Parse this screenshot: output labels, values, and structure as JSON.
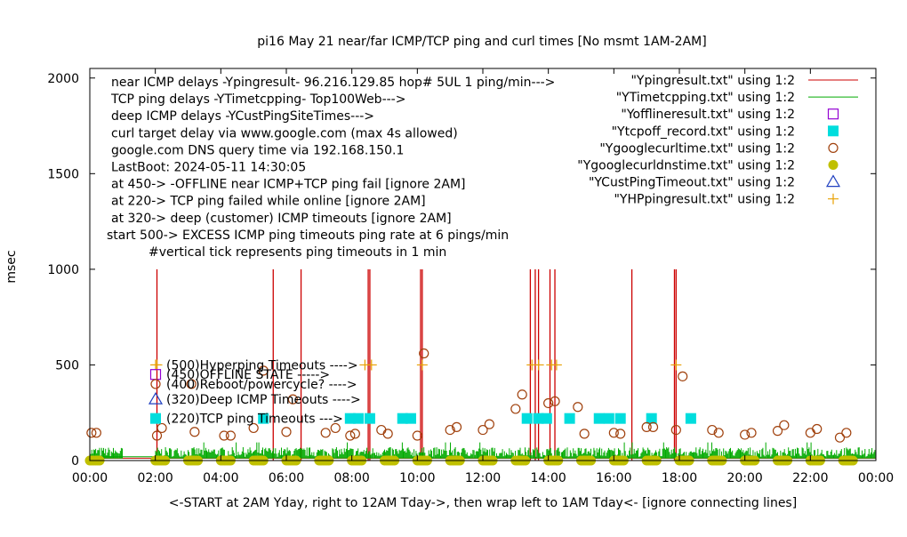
{
  "chart_data": {
    "type": "scatter",
    "title": "pi16 May 21  near/far ICMP/TCP ping and curl times [No msmt 1AM-2AM]",
    "xlabel": "<-START at 2AM Yday, right to 12AM Tday->, then wrap left to 1AM Tday<- [ignore connecting lines]",
    "ylabel": "msec",
    "xlim": [
      0,
      24
    ],
    "ylim": [
      0,
      2050
    ],
    "grid": false,
    "x_ticks": [
      {
        "v": 0,
        "label": "00:00"
      },
      {
        "v": 2,
        "label": "02:00"
      },
      {
        "v": 4,
        "label": "04:00"
      },
      {
        "v": 6,
        "label": "06:00"
      },
      {
        "v": 8,
        "label": "08:00"
      },
      {
        "v": 10,
        "label": "10:00"
      },
      {
        "v": 12,
        "label": "12:00"
      },
      {
        "v": 14,
        "label": "14:00"
      },
      {
        "v": 16,
        "label": "16:00"
      },
      {
        "v": 18,
        "label": "18:00"
      },
      {
        "v": 20,
        "label": "20:00"
      },
      {
        "v": 22,
        "label": "22:00"
      },
      {
        "v": 24,
        "label": "00:00"
      }
    ],
    "y_ticks": [
      {
        "v": 0,
        "label": "0"
      },
      {
        "v": 500,
        "label": "500"
      },
      {
        "v": 1000,
        "label": "1000"
      },
      {
        "v": 1500,
        "label": "1500"
      },
      {
        "v": 2000,
        "label": "2000"
      }
    ],
    "info_lines": [
      "near ICMP delays -Ypingresult- 96.216.129.85 hop# 5UL 1 ping/min--->",
      "TCP ping delays -YTimetcpping- Top100Web--->",
      "deep ICMP delays -YCustPingSiteTimes--->",
      "curl target delay via www.google.com (max 4s allowed)",
      "google.com DNS query time via 192.168.150.1",
      "LastBoot: 2024-05-11 14:30:05",
      "at 450-> -OFFLINE near ICMP+TCP ping fail [ignore 2AM]",
      "at 220-> TCP ping failed while online [ignore 2AM]",
      "at 320-> deep (customer) ICMP timeouts [ignore 2AM]",
      "start 500-> EXCESS ICMP ping timeouts ping rate at 6 pings/min",
      "#vertical tick represents ping timeouts in 1 min"
    ],
    "legend_position": "top-right",
    "legend": [
      {
        "label": "\"Ypingresult.txt\" using 1:2",
        "symbol": "line",
        "color": "#cc0000"
      },
      {
        "label": "\"YTimetcpping.txt\" using 1:2",
        "symbol": "line",
        "color": "#00aa00"
      },
      {
        "label": "\"Yofflineresult.txt\" using 1:2",
        "symbol": "open-square",
        "color": "#9400d3"
      },
      {
        "label": "\"Ytcpoff_record.txt\" using 1:2",
        "symbol": "filled-square",
        "color": "#00dddd"
      },
      {
        "label": "\"Ygooglecurltime.txt\" using 1:2",
        "symbol": "open-circle",
        "color": "#a0410d"
      },
      {
        "label": "\"Ygooglecurldnstime.txt\" using 1:2",
        "symbol": "filled-circle",
        "color": "#c0c000"
      },
      {
        "label": "\"YCustPingTimeout.txt\" using 1:2",
        "symbol": "open-triangle",
        "color": "#2040c0"
      },
      {
        "label": "\"YHPpingresult.txt\" using 1:2",
        "symbol": "plus",
        "color": "#e8a000"
      }
    ],
    "inline_key": [
      {
        "label": "(500)Hyperping Timeouts ---->",
        "symbol": "plus",
        "color": "#e8a000",
        "y": 500
      },
      {
        "label": "(450)OFFLINE STATE ----->",
        "symbol": "open-square",
        "color": "#9400d3",
        "y": 450
      },
      {
        "label": "(400)Reboot/powercycle? ---->",
        "symbol": "open-circle",
        "color": "#a0410d",
        "y": 400
      },
      {
        "label": "(320)Deep ICMP Timeouts ---->",
        "symbol": "open-triangle",
        "color": "#2040c0",
        "y": 320
      },
      {
        "label": "(220)TCP ping Timeouts --->",
        "symbol": "filled-square",
        "color": "#00dddd",
        "y": 220
      }
    ],
    "series": [
      {
        "name": "\"Ypingresult.txt\" using 1:2",
        "style": "impulses",
        "color": "#cc0000",
        "baseline": 12,
        "spikes": [
          [
            2.05,
            1000
          ],
          [
            5.6,
            1000
          ],
          [
            6.45,
            1000
          ],
          [
            8.5,
            1000
          ],
          [
            8.55,
            1000
          ],
          [
            10.1,
            1000
          ],
          [
            10.15,
            1000
          ],
          [
            13.45,
            1000
          ],
          [
            13.6,
            1000
          ],
          [
            13.7,
            1000
          ],
          [
            14.05,
            1000
          ],
          [
            14.2,
            1000
          ],
          [
            16.55,
            1000
          ],
          [
            17.85,
            1000
          ],
          [
            17.9,
            1000
          ]
        ]
      },
      {
        "name": "\"YTimetcpping.txt\" using 1:2",
        "style": "noise-band",
        "color": "#00aa00",
        "baseline": 20,
        "typical_max": 70,
        "peak": 95
      },
      {
        "name": "\"Ytcpoff_record.txt\" using 1:2",
        "style": "filled-square",
        "color": "#00dddd",
        "points": [
          [
            5.3,
            220
          ],
          [
            7.95,
            220
          ],
          [
            8.2,
            220
          ],
          [
            8.55,
            220
          ],
          [
            9.55,
            220
          ],
          [
            9.8,
            220
          ],
          [
            13.35,
            220
          ],
          [
            13.7,
            220
          ],
          [
            13.95,
            220
          ],
          [
            14.65,
            220
          ],
          [
            15.55,
            220
          ],
          [
            15.85,
            220
          ],
          [
            16.2,
            220
          ],
          [
            17.15,
            220
          ],
          [
            18.35,
            220
          ]
        ]
      },
      {
        "name": "\"Ygooglecurltime.txt\" using 1:2",
        "style": "open-circle",
        "color": "#a0410d",
        "points": [
          [
            0.05,
            145
          ],
          [
            0.2,
            145
          ],
          [
            2.05,
            130
          ],
          [
            2.2,
            170
          ],
          [
            3.1,
            400
          ],
          [
            3.2,
            150
          ],
          [
            4.1,
            130
          ],
          [
            4.3,
            130
          ],
          [
            5.0,
            170
          ],
          [
            5.3,
            470
          ],
          [
            6.0,
            150
          ],
          [
            6.2,
            320
          ],
          [
            7.2,
            145
          ],
          [
            7.5,
            170
          ],
          [
            7.95,
            130
          ],
          [
            8.1,
            140
          ],
          [
            8.9,
            160
          ],
          [
            9.1,
            140
          ],
          [
            10.0,
            130
          ],
          [
            10.2,
            560
          ],
          [
            11.0,
            160
          ],
          [
            11.2,
            175
          ],
          [
            12.0,
            160
          ],
          [
            12.2,
            190
          ],
          [
            13.0,
            270
          ],
          [
            13.2,
            345
          ],
          [
            14.0,
            300
          ],
          [
            14.2,
            310
          ],
          [
            14.9,
            280
          ],
          [
            15.1,
            140
          ],
          [
            16.0,
            145
          ],
          [
            16.2,
            140
          ],
          [
            17.0,
            175
          ],
          [
            17.2,
            175
          ],
          [
            17.9,
            160
          ],
          [
            18.1,
            440
          ],
          [
            19.0,
            160
          ],
          [
            19.2,
            145
          ],
          [
            20.0,
            135
          ],
          [
            20.2,
            145
          ],
          [
            21.0,
            155
          ],
          [
            21.2,
            185
          ],
          [
            22.0,
            145
          ],
          [
            22.2,
            165
          ],
          [
            22.9,
            120
          ],
          [
            23.1,
            145
          ]
        ]
      },
      {
        "name": "\"Ygooglecurldnstime.txt\" using 1:2",
        "style": "filled-circle-bands",
        "color": "#c0c000",
        "value": 0,
        "bands": [
          [
            0.0,
            0.3
          ],
          [
            2.0,
            2.3
          ],
          [
            3.0,
            3.3
          ],
          [
            4.0,
            4.3
          ],
          [
            5.0,
            5.3
          ],
          [
            6.0,
            6.3
          ],
          [
            7.0,
            7.3
          ],
          [
            8.0,
            8.3
          ],
          [
            9.0,
            9.3
          ],
          [
            10.0,
            10.3
          ],
          [
            11.0,
            11.3
          ],
          [
            12.0,
            12.3
          ],
          [
            13.0,
            13.3
          ],
          [
            14.0,
            14.3
          ],
          [
            15.0,
            15.3
          ],
          [
            16.0,
            16.3
          ],
          [
            17.0,
            17.3
          ],
          [
            18.0,
            18.3
          ],
          [
            19.0,
            19.3
          ],
          [
            20.0,
            20.3
          ],
          [
            21.0,
            21.3
          ],
          [
            22.0,
            22.3
          ],
          [
            23.0,
            23.3
          ]
        ]
      },
      {
        "name": "\"YHPpingresult.txt\" using 1:2",
        "style": "plus",
        "color": "#e8a000",
        "points": [
          [
            2.05,
            500
          ],
          [
            8.4,
            500
          ],
          [
            8.6,
            500
          ],
          [
            10.15,
            500
          ],
          [
            13.5,
            500
          ],
          [
            13.7,
            500
          ],
          [
            14.1,
            500
          ],
          [
            14.25,
            500
          ],
          [
            17.9,
            500
          ]
        ]
      }
    ]
  }
}
